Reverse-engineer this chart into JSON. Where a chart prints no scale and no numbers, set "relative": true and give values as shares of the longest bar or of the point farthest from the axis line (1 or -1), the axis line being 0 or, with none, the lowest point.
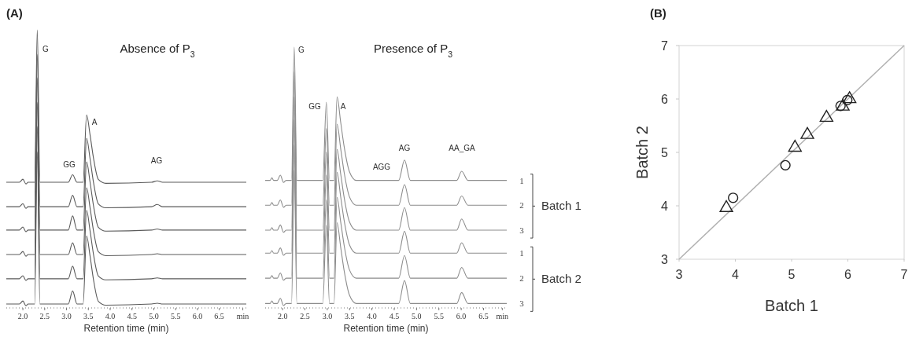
{
  "chart_data": [
    {
      "type": "line",
      "relative": true,
      "title": "Absence of P$_{3}$",
      "xlabel": "Retention time (min)",
      "xlim": [
        1.62,
        7.12
      ],
      "xticks": [
        {
          "value": 2,
          "label": "2.0"
        },
        2.5,
        {
          "value": 3,
          "label": "3.0"
        },
        3.5,
        {
          "value": 4,
          "label": "4.0"
        },
        4.5,
        {
          "value": 5,
          "label": "5.0"
        },
        5.5,
        {
          "value": 6,
          "label": "6.0"
        },
        6.5,
        {
          "value": 7.04,
          "label": "min"
        }
      ],
      "x": [
        1.62,
        1.92,
        2.0,
        2.07,
        2.12,
        2.27,
        2.33,
        2.39,
        2.5,
        3.04,
        3.14,
        3.24,
        3.38,
        3.46,
        3.54,
        3.62,
        3.73,
        3.9,
        4.95,
        5.08,
        5.2,
        7.12
      ],
      "series": [
        {
          "color": "#5a5a5a",
          "values": [
            0.452,
            0.452,
            0.463,
            0.446,
            0.452,
            0.452,
            1.0,
            0.452,
            0.452,
            0.452,
            0.479,
            0.452,
            0.452,
            0.694,
            0.622,
            0.537,
            0.462,
            0.448,
            0.452,
            0.457,
            0.452,
            0.452
          ]
        },
        {
          "color": "#5a5a5a",
          "values": [
            0.364,
            0.364,
            0.375,
            0.358,
            0.364,
            0.364,
            0.912,
            0.364,
            0.364,
            0.364,
            0.405,
            0.364,
            0.364,
            0.61,
            0.536,
            0.45,
            0.374,
            0.36,
            0.364,
            0.372,
            0.364,
            0.364
          ]
        },
        {
          "color": "#5a5a5a",
          "values": [
            0.28,
            0.28,
            0.291,
            0.274,
            0.28,
            0.28,
            0.828,
            0.28,
            0.28,
            0.28,
            0.331,
            0.28,
            0.28,
            0.525,
            0.452,
            0.366,
            0.29,
            0.276,
            0.28,
            0.284,
            0.28,
            0.28
          ]
        },
        {
          "color": "#5a5a5a",
          "values": [
            0.192,
            0.192,
            0.203,
            0.186,
            0.192,
            0.192,
            0.74,
            0.192,
            0.192,
            0.192,
            0.234,
            0.192,
            0.192,
            0.432,
            0.36,
            0.276,
            0.202,
            0.188,
            0.192,
            0.195,
            0.192,
            0.192
          ]
        },
        {
          "color": "#5a5a5a",
          "values": [
            0.105,
            0.105,
            0.116,
            0.099,
            0.105,
            0.105,
            0.653,
            0.105,
            0.105,
            0.105,
            0.15,
            0.105,
            0.105,
            0.351,
            0.277,
            0.191,
            0.115,
            0.101,
            0.105,
            0.108,
            0.105,
            0.105
          ]
        },
        {
          "color": "#5a5a5a",
          "values": [
            0.014,
            0.014,
            0.025,
            0.008,
            0.014,
            0.014,
            0.562,
            0.014,
            0.014,
            0.014,
            0.061,
            0.014,
            0.014,
            0.259,
            0.186,
            0.1,
            0.024,
            0.01,
            0.014,
            0.017,
            0.014,
            0.014
          ]
        }
      ],
      "annotations": [
        "(A)",
        "G",
        "GG",
        "A",
        "AG"
      ]
    },
    {
      "type": "line",
      "relative": true,
      "title": "Presence of P$_{3}$",
      "xlabel": "Retention time (min)",
      "xlim": [
        1.61,
        7.02
      ],
      "xticks": [
        {
          "value": 2,
          "label": "2.0"
        },
        2.5,
        {
          "value": 3,
          "label": "3.0"
        },
        3.5,
        {
          "value": 4,
          "label": "4.0"
        },
        4.5,
        {
          "value": 5,
          "label": "5.0"
        },
        5.5,
        {
          "value": 6,
          "label": "6.0"
        },
        6.5,
        {
          "value": 6.92,
          "label": "min"
        }
      ],
      "x": [
        1.61,
        1.72,
        1.76,
        1.8,
        1.88,
        1.95,
        2.02,
        2.08,
        2.2,
        2.26,
        2.32,
        2.9,
        2.98,
        3.05,
        3.15,
        3.22,
        3.3,
        3.38,
        3.5,
        3.65,
        4.6,
        4.73,
        4.86,
        5.9,
        6.01,
        6.15,
        7.02
      ],
      "series": [
        {
          "name": "1",
          "color": "#8c8c8c",
          "values": [
            0.489,
            0.489,
            0.499,
            0.489,
            0.489,
            0.509,
            0.481,
            0.489,
            0.489,
            1.0,
            0.489,
            0.489,
            0.789,
            0.489,
            0.489,
            0.809,
            0.713,
            0.617,
            0.521,
            0.489,
            0.489,
            0.567,
            0.489,
            0.489,
            0.524,
            0.489,
            0.489
          ]
        },
        {
          "name": "2",
          "color": "#8c8c8c",
          "values": [
            0.394,
            0.394,
            0.404,
            0.394,
            0.394,
            0.414,
            0.386,
            0.394,
            0.394,
            0.905,
            0.394,
            0.394,
            0.688,
            0.394,
            0.394,
            0.705,
            0.612,
            0.518,
            0.425,
            0.394,
            0.394,
            0.473,
            0.394,
            0.394,
            0.429,
            0.394,
            0.394
          ]
        },
        {
          "name": "3",
          "color": "#8c8c8c",
          "values": [
            0.298,
            0.298,
            0.308,
            0.298,
            0.298,
            0.318,
            0.29,
            0.298,
            0.298,
            0.809,
            0.298,
            0.298,
            0.598,
            0.298,
            0.298,
            0.608,
            0.515,
            0.422,
            0.329,
            0.298,
            0.298,
            0.385,
            0.298,
            0.298,
            0.341,
            0.298,
            0.298
          ]
        },
        {
          "name": "1",
          "color": "#8c8c8c",
          "values": [
            0.21,
            0.21,
            0.22,
            0.21,
            0.21,
            0.23,
            0.202,
            0.21,
            0.21,
            0.721,
            0.21,
            0.21,
            0.51,
            0.21,
            0.21,
            0.52,
            0.427,
            0.334,
            0.241,
            0.21,
            0.21,
            0.294,
            0.21,
            0.21,
            0.25,
            0.21,
            0.21
          ]
        },
        {
          "name": "2",
          "color": "#8c8c8c",
          "values": [
            0.114,
            0.114,
            0.124,
            0.114,
            0.114,
            0.134,
            0.106,
            0.114,
            0.114,
            0.625,
            0.114,
            0.114,
            0.414,
            0.114,
            0.114,
            0.424,
            0.331,
            0.238,
            0.145,
            0.114,
            0.114,
            0.201,
            0.114,
            0.114,
            0.155,
            0.114,
            0.114
          ]
        },
        {
          "name": "3",
          "color": "#8c8c8c",
          "values": [
            0.017,
            0.017,
            0.027,
            0.017,
            0.017,
            0.037,
            0.009,
            0.017,
            0.017,
            0.528,
            0.017,
            0.017,
            0.317,
            0.017,
            0.017,
            0.327,
            0.234,
            0.141,
            0.048,
            0.017,
            0.017,
            0.105,
            0.017,
            0.017,
            0.059,
            0.017,
            0.017
          ]
        }
      ],
      "annotations": [
        "Batch 1",
        "Batch 2",
        "G",
        "GG",
        "A",
        "AGG",
        "AG",
        "AA_GA"
      ]
    },
    {
      "type": "scatter",
      "xlabel": "Batch 1",
      "ylabel": "Batch 2",
      "xlim": [
        3,
        7
      ],
      "ylim": [
        3,
        7
      ],
      "xticks": [
        3,
        4,
        5,
        6,
        7
      ],
      "yticks": [
        3,
        4,
        5,
        6,
        7
      ],
      "series": [
        {
          "color": "#222222",
          "marker": "triangle",
          "x": [
            3.84,
            5.06,
            5.28,
            5.62,
            5.91,
            6.03
          ],
          "values": [
            3.96,
            5.09,
            5.33,
            5.65,
            5.86,
            6.0
          ]
        },
        {
          "color": "#222222",
          "marker": "circle",
          "x": [
            3.96,
            4.89,
            5.87,
            5.99
          ],
          "values": [
            4.15,
            4.76,
            5.87,
            5.98
          ]
        },
        {
          "type": "line",
          "color": "#b0b0b0",
          "x": [
            3,
            7
          ],
          "values": [
            3,
            7
          ]
        }
      ],
      "annotations": [
        "(B)"
      ]
    }
  ]
}
